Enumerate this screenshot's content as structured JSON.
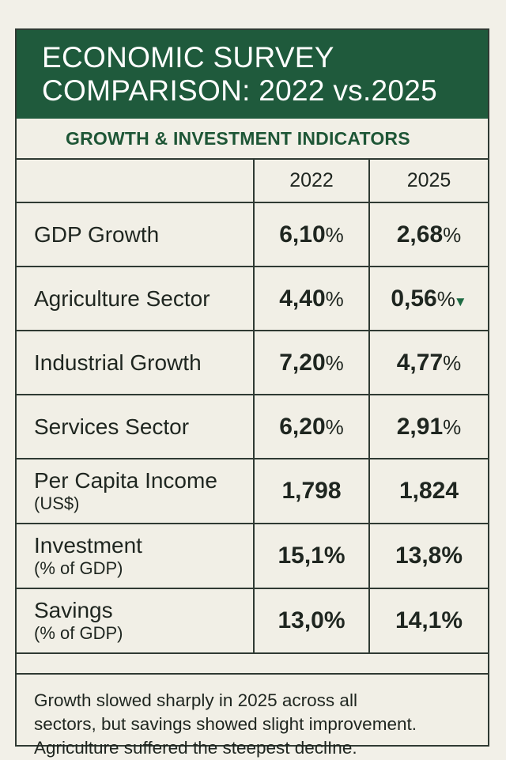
{
  "header": {
    "title_line1": "ECONOMIC SURVEY",
    "title_line2": "COMPARISON: 2022 vs.2025"
  },
  "subtitle": "GROWTH & INVESTMENT INDICATORS",
  "table": {
    "columns": [
      "",
      "2022",
      "2025"
    ],
    "rows": [
      {
        "label": "GDP Growth",
        "sub": "",
        "v2022": "6,10",
        "u2022": "%",
        "v2025": "2,68",
        "u2025": "%"
      },
      {
        "label": "Agriculture Sector",
        "sub": "",
        "v2022": "4,40",
        "u2022": "%",
        "v2025": "0,56",
        "u2025": "%",
        "arrow2025": "▼"
      },
      {
        "label": "Industrial Growth",
        "sub": "",
        "v2022": "7,20",
        "u2022": "%",
        "v2025": "4,77",
        "u2025": "%"
      },
      {
        "label": "Services Sector",
        "sub": "",
        "v2022": "6,20",
        "u2022": "%",
        "v2025": "2,91",
        "u2025": "%"
      },
      {
        "label": "Per Capita Income",
        "sub": "(US$)",
        "v2022": "1,798",
        "u2022": "",
        "v2025": "1,824",
        "u2025": ""
      },
      {
        "label": "Investment",
        "sub": "(% of GDP)",
        "v2022": "15,1%",
        "u2022": "",
        "v2025": "13,8%",
        "u2025": ""
      },
      {
        "label": "Savings",
        "sub": "(% of GDP)",
        "v2022": "13,0%",
        "u2022": "",
        "v2025": "14,1%",
        "u2025": ""
      }
    ]
  },
  "footer": {
    "line1": "Growth slowed sharply in 2025 across all",
    "line2": "sectors, but savings showed slight improvement.",
    "line3": "Agriculture suffered the steepest declIne."
  },
  "colors": {
    "header_bg": "#1f5a3c",
    "accent_green": "#1e5636",
    "background": "#f1efe6",
    "border": "#2f3a33"
  }
}
